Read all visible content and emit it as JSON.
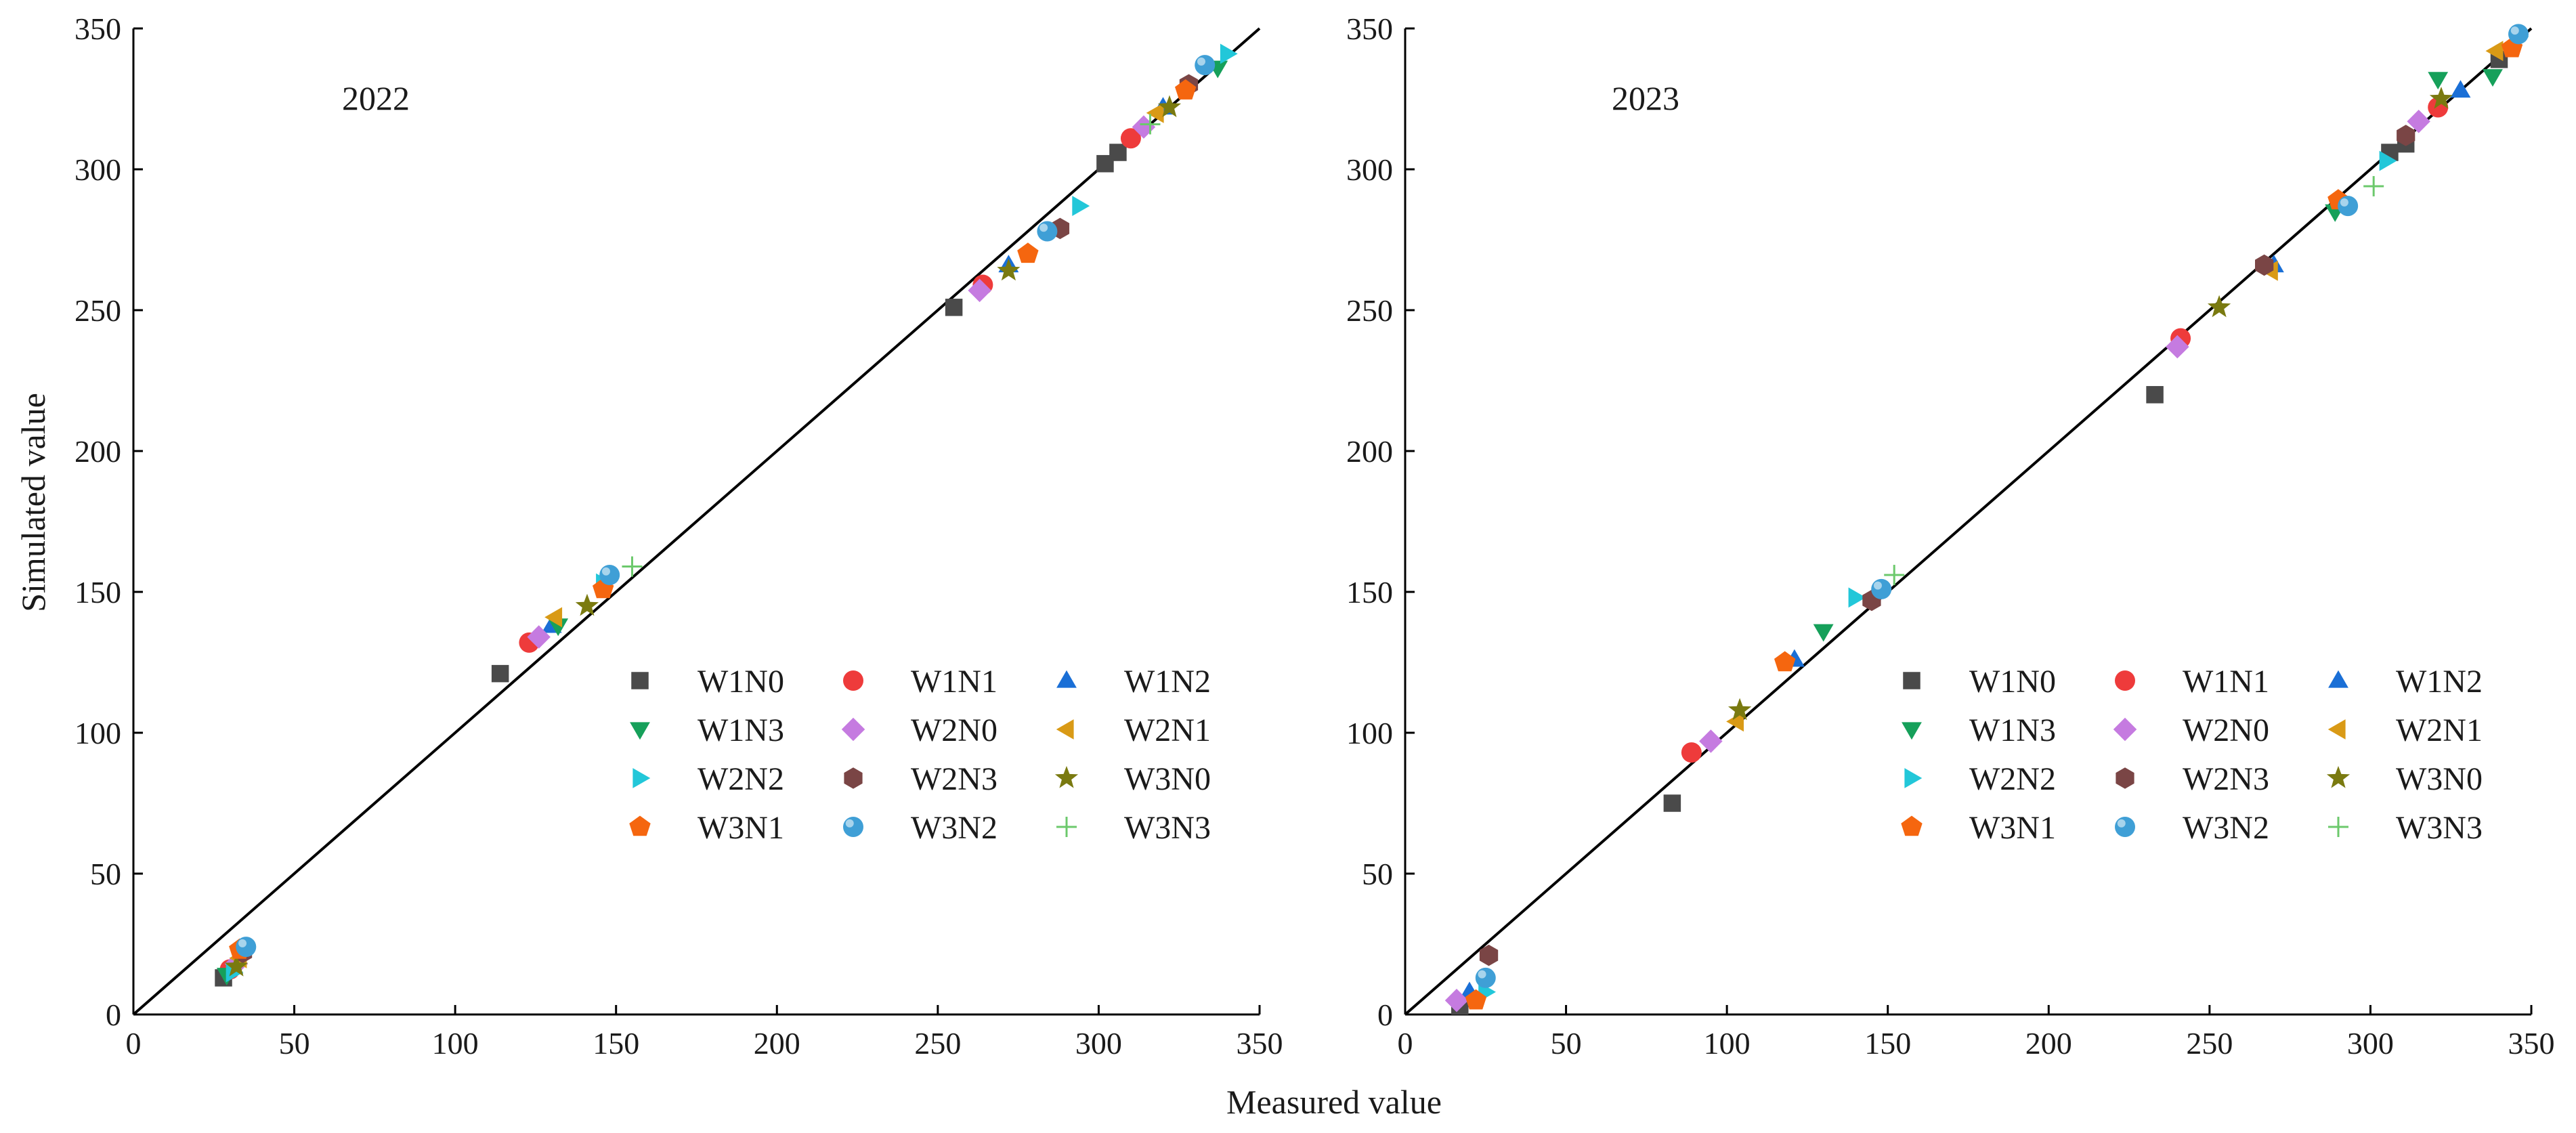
{
  "figure": {
    "y_axis_title": "Simulated value",
    "x_axis_title": "Measured value"
  },
  "legend": {
    "entries": [
      {
        "label": "W1N0",
        "marker": "square",
        "color": "#4a4a4a"
      },
      {
        "label": "W1N1",
        "marker": "circle",
        "color": "#ee3b3b"
      },
      {
        "label": "W1N2",
        "marker": "triangle-up",
        "color": "#1a6fd6"
      },
      {
        "label": "W1N3",
        "marker": "triangle-down",
        "color": "#16a05a"
      },
      {
        "label": "W2N0",
        "marker": "diamond",
        "color": "#c57be0"
      },
      {
        "label": "W2N1",
        "marker": "triangle-left",
        "color": "#d99a16"
      },
      {
        "label": "W2N2",
        "marker": "triangle-right",
        "color": "#22c7d9"
      },
      {
        "label": "W2N3",
        "marker": "hexagon",
        "color": "#7a4545"
      },
      {
        "label": "W3N0",
        "marker": "star",
        "color": "#7a7a10"
      },
      {
        "label": "W3N1",
        "marker": "pentagon",
        "color": "#f5660f"
      },
      {
        "label": "W3N2",
        "marker": "sphere",
        "color": "#3f9fd6"
      },
      {
        "label": "W3N3",
        "marker": "plus",
        "color": "#6cc96c"
      }
    ]
  },
  "chart_data": [
    {
      "type": "scatter",
      "title": "2022",
      "xlabel": "Measured value",
      "ylabel": "Simulated value",
      "xlim": [
        0,
        350
      ],
      "ylim": [
        0,
        350
      ],
      "xticks": [
        0,
        50,
        100,
        150,
        200,
        250,
        300,
        350
      ],
      "yticks": [
        0,
        50,
        100,
        150,
        200,
        250,
        300,
        350
      ],
      "reference_line": "1:1",
      "series": [
        {
          "name": "W1N0",
          "points": [
            [
              28,
              13
            ],
            [
              114,
              121
            ],
            [
              255,
              251
            ],
            [
              302,
              302
            ],
            [
              306,
              306
            ]
          ]
        },
        {
          "name": "W1N1",
          "points": [
            [
              30,
              16
            ],
            [
              123,
              132
            ],
            [
              264,
              259
            ],
            [
              310,
              311
            ]
          ]
        },
        {
          "name": "W1N2",
          "points": [
            [
              31,
              17
            ],
            [
              130,
              138
            ],
            [
              272,
              266
            ],
            [
              320,
              322
            ]
          ]
        },
        {
          "name": "W1N3",
          "points": [
            [
              29,
              14
            ],
            [
              132,
              138
            ],
            [
              337,
              336
            ]
          ]
        },
        {
          "name": "W2N0",
          "points": [
            [
              32,
              18
            ],
            [
              126,
              134
            ],
            [
              263,
              257
            ],
            [
              314,
              315
            ]
          ]
        },
        {
          "name": "W2N1",
          "points": [
            [
              33,
              20
            ],
            [
              131,
              141
            ],
            [
              318,
              320
            ]
          ]
        },
        {
          "name": "W2N2",
          "points": [
            [
              31,
              15
            ],
            [
              146,
              153
            ],
            [
              294,
              287
            ],
            [
              340,
              341
            ]
          ]
        },
        {
          "name": "W2N3",
          "points": [
            [
              34,
              22
            ],
            [
              288,
              279
            ],
            [
              328,
              330
            ]
          ]
        },
        {
          "name": "W3N0",
          "points": [
            [
              32,
              17
            ],
            [
              141,
              145
            ],
            [
              272,
              264
            ],
            [
              322,
              322
            ]
          ]
        },
        {
          "name": "W3N1",
          "points": [
            [
              33,
              23
            ],
            [
              146,
              151
            ],
            [
              278,
              270
            ],
            [
              327,
              328
            ]
          ]
        },
        {
          "name": "W3N2",
          "points": [
            [
              35,
              24
            ],
            [
              148,
              156
            ],
            [
              284,
              278
            ],
            [
              333,
              337
            ]
          ]
        },
        {
          "name": "W3N3",
          "points": [
            [
              155,
              159
            ],
            [
              316,
              316
            ]
          ]
        }
      ]
    },
    {
      "type": "scatter",
      "title": "2023",
      "xlabel": "Measured value",
      "ylabel": "Simulated value",
      "xlim": [
        0,
        350
      ],
      "ylim": [
        0,
        350
      ],
      "xticks": [
        0,
        50,
        100,
        150,
        200,
        250,
        300,
        350
      ],
      "yticks": [
        0,
        50,
        100,
        150,
        200,
        250,
        300,
        350
      ],
      "reference_line": "1:1",
      "series": [
        {
          "name": "W1N0",
          "points": [
            [
              17,
              3
            ],
            [
              83,
              75
            ],
            [
              233,
              220
            ],
            [
              306,
              306
            ],
            [
              311,
              309
            ],
            [
              340,
              339
            ]
          ]
        },
        {
          "name": "W1N1",
          "points": [
            [
              89,
              93
            ],
            [
              241,
              240
            ],
            [
              321,
              322
            ]
          ]
        },
        {
          "name": "W1N2",
          "points": [
            [
              20,
              8
            ],
            [
              121,
              126
            ],
            [
              270,
              266
            ],
            [
              328,
              328
            ]
          ]
        },
        {
          "name": "W1N3",
          "points": [
            [
              130,
              136
            ],
            [
              289,
              285
            ],
            [
              321,
              332
            ],
            [
              338,
              333
            ]
          ]
        },
        {
          "name": "W2N0",
          "points": [
            [
              16,
              5
            ],
            [
              95,
              97
            ],
            [
              240,
              237
            ],
            [
              315,
              317
            ]
          ]
        },
        {
          "name": "W2N1",
          "points": [
            [
              103,
              104
            ],
            [
              269,
              264
            ],
            [
              339,
              342
            ]
          ]
        },
        {
          "name": "W2N2",
          "points": [
            [
              25,
              8
            ],
            [
              140,
              148
            ],
            [
              305,
              303
            ],
            [
              346,
              347
            ]
          ]
        },
        {
          "name": "W2N3",
          "points": [
            [
              26,
              21
            ],
            [
              145,
              147
            ],
            [
              267,
              266
            ],
            [
              311,
              312
            ]
          ]
        },
        {
          "name": "W3N0",
          "points": [
            [
              104,
              108
            ],
            [
              253,
              251
            ],
            [
              322,
              325
            ]
          ]
        },
        {
          "name": "W3N1",
          "points": [
            [
              22,
              5
            ],
            [
              118,
              125
            ],
            [
              290,
              289
            ],
            [
              344,
              343
            ]
          ]
        },
        {
          "name": "W3N2",
          "points": [
            [
              25,
              13
            ],
            [
              148,
              151
            ],
            [
              293,
              287
            ],
            [
              346,
              348
            ]
          ]
        },
        {
          "name": "W3N3",
          "points": [
            [
              152,
              156
            ],
            [
              301,
              294
            ]
          ]
        }
      ]
    }
  ]
}
